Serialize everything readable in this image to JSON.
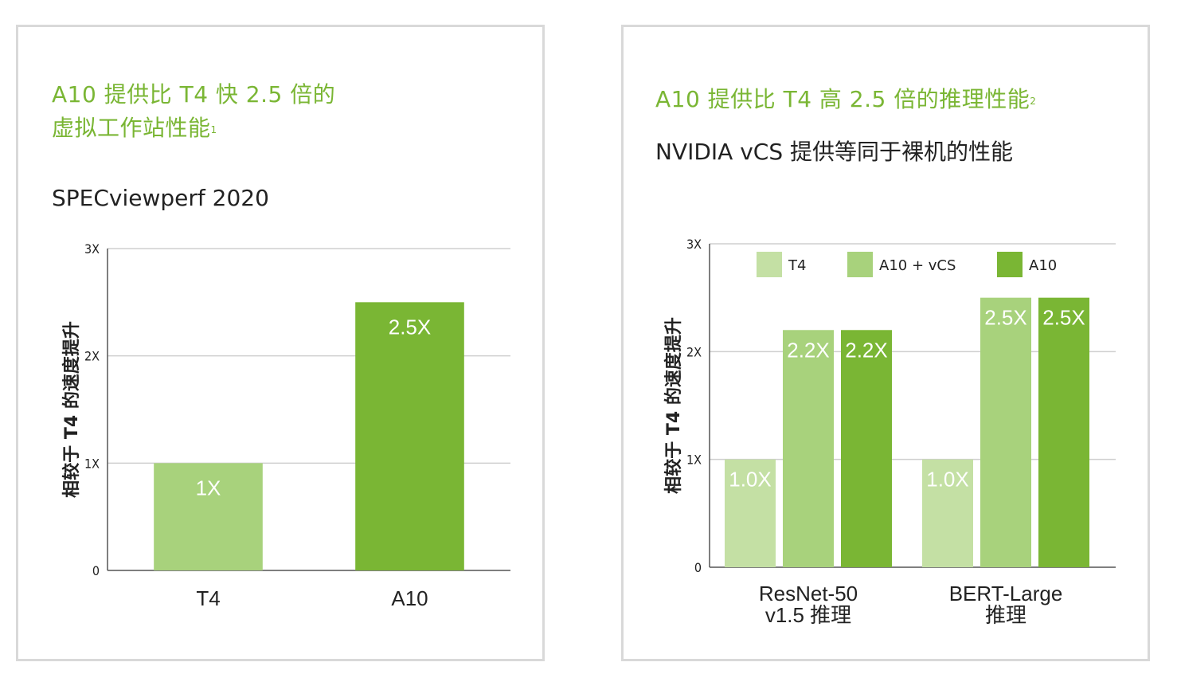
{
  "panels": [
    {
      "title_line1": "A10 提供比 T4 快 2.5 倍的",
      "title_line2": "虚拟工作站性能",
      "title_sup": "1",
      "subtitle": "SPECviewperf 2020"
    },
    {
      "title_line1": "A10 提供比 T4 高 2.5 倍的推理性能",
      "title_sup": "2",
      "subtitle": "NVIDIA vCS 提供等同于裸机的性能"
    }
  ],
  "chart_data": [
    {
      "type": "bar",
      "categories": [
        "T4",
        "A10"
      ],
      "values": [
        1,
        2.5
      ],
      "value_labels": [
        "1X",
        "2.5X"
      ],
      "bar_colors": [
        "#a8d27c",
        "#7ab634"
      ],
      "ylabel": "相较于 T4 的速度提升",
      "ylim": [
        0,
        3
      ],
      "yticks": [
        0,
        1,
        2,
        3
      ],
      "ytick_labels": [
        "0",
        "1X",
        "2X",
        "3X"
      ],
      "grid": true
    },
    {
      "type": "bar",
      "categories": [
        "ResNet-50 v1.5 推理",
        "BERT-Large 推理"
      ],
      "category_lines": [
        [
          "ResNet-50",
          "v1.5 推理"
        ],
        [
          "BERT-Large",
          "推理"
        ]
      ],
      "series": [
        {
          "name": "T4",
          "values": [
            1.0,
            1.0
          ],
          "labels": [
            "1.0X",
            "1.0X"
          ],
          "color": "#c4e0a4"
        },
        {
          "name": "A10 + vCS",
          "values": [
            2.2,
            2.5
          ],
          "labels": [
            "2.2X",
            "2.5X"
          ],
          "color": "#a8d27c"
        },
        {
          "name": "A10",
          "values": [
            2.2,
            2.5
          ],
          "labels": [
            "2.2X",
            "2.5X"
          ],
          "color": "#7ab634"
        }
      ],
      "ylabel": "相较于 T4 的速度提升",
      "ylim": [
        0,
        3
      ],
      "yticks": [
        0,
        1,
        2,
        3
      ],
      "ytick_labels": [
        "0",
        "1X",
        "2X",
        "3X"
      ],
      "grid": true,
      "legend_position": "top"
    }
  ]
}
